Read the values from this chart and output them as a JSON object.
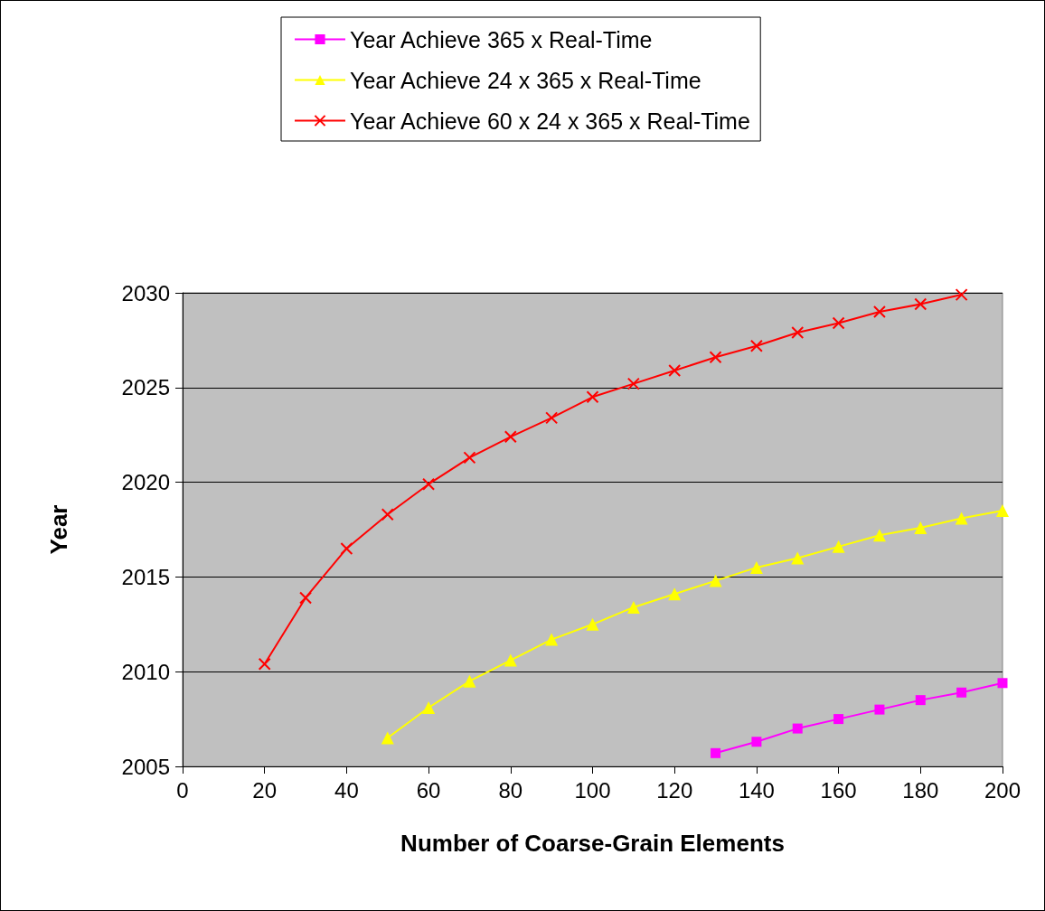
{
  "chart_data": {
    "type": "line",
    "xlabel": "Number of Coarse-Grain Elements",
    "ylabel": "Year",
    "x": [
      20,
      30,
      40,
      50,
      60,
      70,
      80,
      90,
      100,
      110,
      120,
      130,
      140,
      150,
      160,
      170,
      180,
      190,
      200
    ],
    "series": [
      {
        "name": "Year Achieve 365 x Real-Time",
        "color": "#ff00ff",
        "marker": "square",
        "values": [
          null,
          null,
          null,
          null,
          null,
          null,
          null,
          null,
          null,
          null,
          null,
          2005.7,
          2006.3,
          2007.0,
          2007.5,
          2008.0,
          2008.5,
          2008.9,
          2009.4
        ]
      },
      {
        "name": "Year Achieve 24 x 365 x Real-Time",
        "color": "#ffff00",
        "marker": "triangle",
        "values": [
          null,
          null,
          null,
          2006.5,
          2008.1,
          2009.5,
          2010.6,
          2011.7,
          2012.5,
          2013.4,
          2014.1,
          2014.8,
          2015.5,
          2016.0,
          2016.6,
          2017.2,
          2017.6,
          2018.1,
          2018.5
        ]
      },
      {
        "name": "Year Achieve 60 x 24 x 365 x Real-Time",
        "color": "#ff0000",
        "marker": "cross",
        "values": [
          2010.4,
          2013.9,
          2016.5,
          2018.3,
          2019.9,
          2021.3,
          2022.4,
          2023.4,
          2024.5,
          2025.2,
          2025.9,
          2026.6,
          2027.2,
          2027.9,
          2028.4,
          2029.0,
          2029.4,
          2029.9,
          null
        ]
      }
    ],
    "xlim": [
      0,
      200
    ],
    "xticks": [
      0,
      20,
      40,
      60,
      80,
      100,
      120,
      140,
      160,
      180,
      200
    ],
    "ylim": [
      2005,
      2030
    ],
    "yticks": [
      2005,
      2010,
      2015,
      2020,
      2025,
      2030
    ],
    "grid": "y",
    "legend": "top"
  }
}
